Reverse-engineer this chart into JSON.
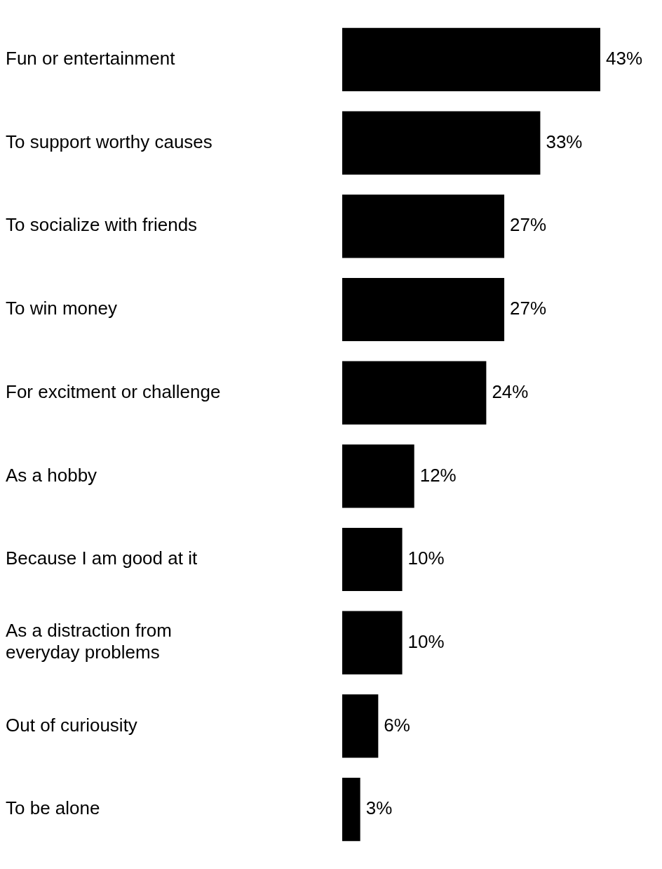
{
  "chart_data": {
    "type": "bar",
    "orientation": "horizontal",
    "categories": [
      "Fun or entertainment",
      "To support worthy causes",
      "To socialize with friends",
      "To win money",
      "For excitment or challenge",
      "As a hobby",
      "Because I am good at it",
      "As a distraction from everyday problems",
      "Out of curiousity",
      "To be alone"
    ],
    "values": [
      43,
      33,
      27,
      27,
      24,
      12,
      10,
      10,
      6,
      3
    ],
    "value_labels": [
      "43%",
      "33%",
      "27%",
      "27%",
      "24%",
      "12%",
      "10%",
      "10%",
      "6%",
      "3%"
    ],
    "color": "#000000",
    "grid": false,
    "legend": false
  }
}
